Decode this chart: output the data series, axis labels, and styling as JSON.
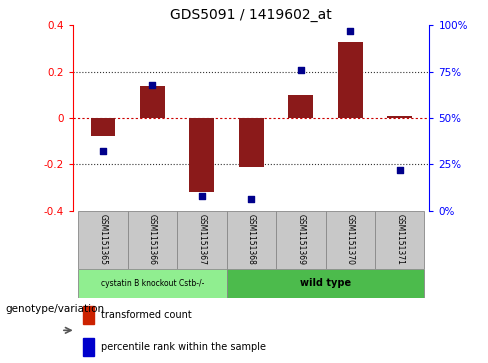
{
  "title": "GDS5091 / 1419602_at",
  "categories": [
    "GSM1151365",
    "GSM1151366",
    "GSM1151367",
    "GSM1151368",
    "GSM1151369",
    "GSM1151370",
    "GSM1151371"
  ],
  "bar_values": [
    -0.08,
    0.14,
    -0.32,
    -0.21,
    0.1,
    0.33,
    0.01
  ],
  "dot_values": [
    32,
    68,
    8,
    6,
    76,
    97,
    22
  ],
  "ylim_left": [
    -0.4,
    0.4
  ],
  "ylim_right": [
    0,
    100
  ],
  "bar_color": "#8B1A1A",
  "dot_color": "#00008B",
  "zero_line_color": "#CC0000",
  "dotted_line_color": "#333333",
  "dotted_line_y": [
    0.2,
    -0.2
  ],
  "left_ticks": [
    -0.4,
    -0.2,
    0,
    0.2,
    0.4
  ],
  "left_labels": [
    "-0.4",
    "-0.2",
    "0",
    "0.2",
    "0.4"
  ],
  "right_ticks": [
    0,
    25,
    50,
    75,
    100
  ],
  "right_labels": [
    "0%",
    "25%",
    "50%",
    "75%",
    "100%"
  ],
  "group1_label": "cystatin B knockout Cstb-/-",
  "group2_label": "wild type",
  "group1_count": 3,
  "group2_count": 4,
  "group1_color": "#90EE90",
  "group2_color": "#4CBB4C",
  "gray_color": "#C8C8C8",
  "gray_border": "#888888",
  "annotation_label": "genotype/variation",
  "legend1_label": "transformed count",
  "legend2_label": "percentile rank within the sample",
  "legend_bar_color": "#CC2200",
  "legend_dot_color": "#0000CC"
}
